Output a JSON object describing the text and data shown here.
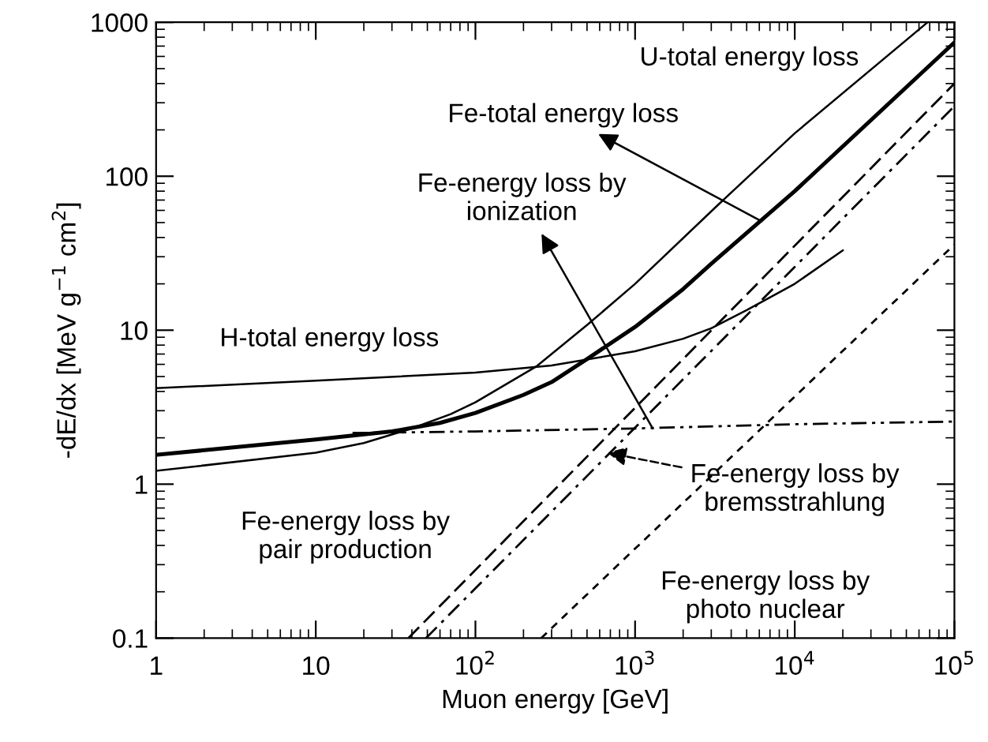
{
  "chart_data": {
    "type": "line",
    "xlabel": "Muon energy [GeV]",
    "ylabel": "-dE/dx [MeV g$^{−1}$ cm$^{2}$]",
    "log": "xy",
    "xlim": [
      1,
      100000
    ],
    "ylim": [
      0.1,
      1000
    ],
    "xticks": [
      1,
      10,
      {
        "value": 100,
        "label": "10$^{2}$"
      },
      {
        "value": 1000,
        "label": "10$^{3}$"
      },
      {
        "value": 10000,
        "label": "10$^{4}$"
      },
      {
        "value": 100000,
        "label": "10$^{5}$"
      }
    ],
    "yticks": [
      0.1,
      1,
      10,
      100,
      1000
    ],
    "series": [
      {
        "color": "#000000",
        "line_style": "solid",
        "x": [
          1,
          10,
          20,
          40,
          70,
          100,
          240,
          500,
          1000,
          3300,
          10000,
          68000
        ],
        "values": [
          1.22,
          1.6,
          1.85,
          2.3,
          2.85,
          3.4,
          5.8,
          10.8,
          20,
          65,
          190,
          1000
        ]
      },
      {
        "color": "#000000",
        "line_style": "solid",
        "x": [
          1,
          10,
          30,
          60,
          100,
          200,
          300,
          500,
          1000,
          2000,
          3000,
          10000,
          100000
        ],
        "values": [
          1.55,
          1.95,
          2.2,
          2.5,
          2.9,
          3.8,
          4.6,
          6.5,
          10.5,
          18.5,
          27,
          80,
          740
        ]
      },
      {
        "color": "#000000",
        "line_style": "solid",
        "x": [
          1,
          10,
          100,
          300,
          1000,
          2000,
          3000,
          5000,
          10000,
          20000
        ],
        "values": [
          4.2,
          4.7,
          5.3,
          5.9,
          7.3,
          8.8,
          10.3,
          13.5,
          20,
          33
        ]
      },
      {
        "color": "#000000",
        "line_style": "dashdotdot",
        "x": [
          17,
          100,
          1000,
          10000,
          100000
        ],
        "values": [
          2.15,
          2.2,
          2.3,
          2.45,
          2.55
        ]
      },
      {
        "color": "#000000",
        "line_style": "dashed",
        "x": [
          38,
          100000
        ],
        "values": [
          0.1,
          400
        ]
      },
      {
        "color": "#000000",
        "line_style": "dashdot",
        "x": [
          49,
          100000
        ],
        "values": [
          0.1,
          285
        ]
      },
      {
        "color": "#000000",
        "line_style": "shortdash",
        "x": [
          258,
          100000
        ],
        "values": [
          0.1,
          36
        ]
      }
    ],
    "annotations": [
      "U-total energy loss",
      {
        "text": "Fe-total energy loss",
        "x": 6200,
        "y": 51
      },
      {
        "text": "Fe-energy loss by\nionization",
        "x": 1290,
        "y": 2.3
      },
      "H-total energy loss",
      {
        "text": "Fe-energy loss by\nbremsstrahlung",
        "x": 670,
        "y": 1.6
      },
      "Fe-energy loss by\npair production",
      "Fe-energy loss by\nphoto nuclear"
    ]
  }
}
